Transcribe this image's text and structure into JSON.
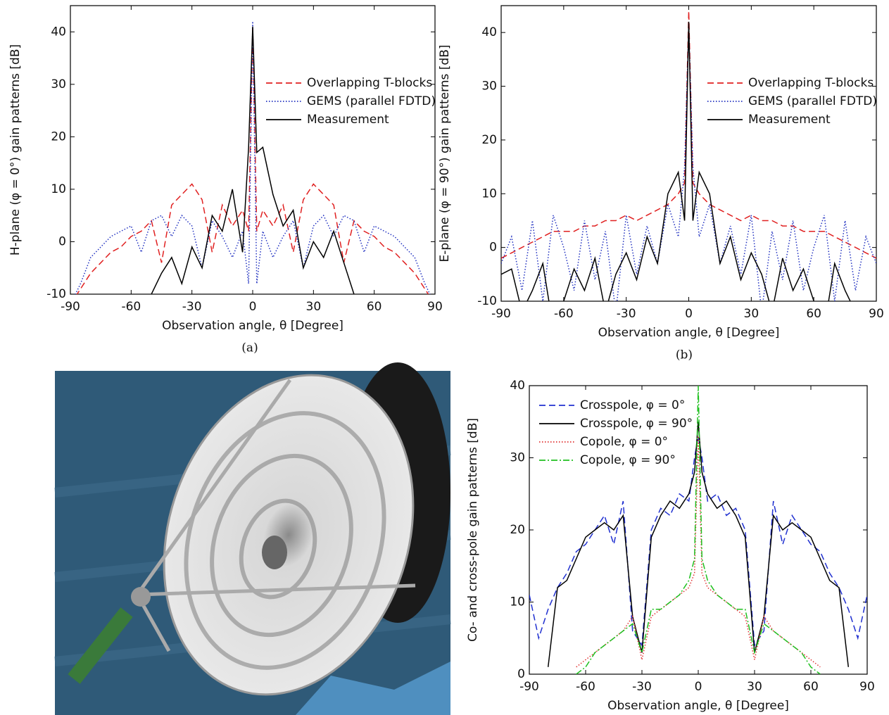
{
  "chart_data": [
    {
      "type": "line",
      "caption": "(a)",
      "xlabel": "Observation angle, θ [Degree]",
      "ylabel": "H-plane (φ = 0°) gain patterns [dB]",
      "x": [
        -90,
        -85,
        -80,
        -75,
        -70,
        -65,
        -60,
        -55,
        -50,
        -45,
        -40,
        -35,
        -30,
        -25,
        -20,
        -15,
        -10,
        -5,
        -2,
        0,
        2,
        5,
        10,
        15,
        20,
        25,
        30,
        35,
        40,
        45,
        50,
        55,
        60,
        65,
        70,
        75,
        80,
        85,
        90
      ],
      "xlim": [
        -90,
        90
      ],
      "xticks": [
        -90,
        -60,
        -30,
        0,
        30,
        60,
        90
      ],
      "ylim": [
        -10,
        45
      ],
      "yticks": [
        -10,
        0,
        10,
        20,
        30,
        40
      ],
      "grid": false,
      "legend": "upper right",
      "series": [
        {
          "name": "Overlapping T-blocks",
          "color": "#e02020",
          "style": "dashed",
          "values": [
            -12,
            -9,
            -6,
            -4,
            -2,
            -1,
            1,
            2,
            4,
            -4,
            7,
            9,
            11,
            8,
            -2,
            7,
            3,
            6,
            2,
            41,
            2,
            6,
            3,
            7,
            -2,
            8,
            11,
            9,
            7,
            -4,
            4,
            2,
            1,
            -1,
            -2,
            -4,
            -6,
            -9,
            -12
          ]
        },
        {
          "name": "GEMS (parallel FDTD)",
          "color": "#2030c0",
          "style": "dotted",
          "values": [
            -12,
            -8,
            -3,
            -1,
            1,
            2,
            3,
            -2,
            4,
            5,
            1,
            5,
            3,
            -5,
            4,
            1,
            -3,
            2,
            -8,
            42,
            -8,
            2,
            -3,
            1,
            4,
            -5,
            3,
            5,
            1,
            5,
            4,
            -2,
            3,
            2,
            1,
            -1,
            -3,
            -8,
            -12
          ]
        },
        {
          "name": "Measurement",
          "color": "#000000",
          "style": "solid",
          "values": [
            null,
            null,
            null,
            null,
            null,
            null,
            null,
            null,
            -10,
            -6,
            -3,
            -8,
            -1,
            -5,
            5,
            2,
            10,
            -2,
            18,
            41,
            17,
            18,
            9,
            3,
            6,
            -5,
            0,
            -3,
            2,
            -4,
            -10,
            null,
            null,
            null,
            null,
            null,
            null,
            null,
            null
          ]
        }
      ]
    },
    {
      "type": "line",
      "caption": "(b)",
      "xlabel": "Observation angle, θ [Degree]",
      "ylabel": "E-plane (φ = 90°) gain patterns [dB]",
      "x": [
        -90,
        -85,
        -80,
        -75,
        -70,
        -65,
        -60,
        -55,
        -50,
        -45,
        -40,
        -35,
        -30,
        -25,
        -20,
        -15,
        -10,
        -5,
        -2,
        0,
        2,
        5,
        10,
        15,
        20,
        25,
        30,
        35,
        40,
        45,
        50,
        55,
        60,
        65,
        70,
        75,
        80,
        85,
        90
      ],
      "xlim": [
        -90,
        90
      ],
      "xticks": [
        -90,
        -60,
        -30,
        0,
        30,
        60,
        90
      ],
      "ylim": [
        -10,
        45
      ],
      "yticks": [
        -10,
        0,
        10,
        20,
        30,
        40
      ],
      "grid": false,
      "legend": "upper right",
      "series": [
        {
          "name": "Overlapping T-blocks",
          "color": "#e02020",
          "style": "dashed",
          "values": [
            -2,
            -1,
            0,
            1,
            2,
            3,
            3,
            3,
            4,
            4,
            5,
            5,
            6,
            5,
            6,
            7,
            8,
            10,
            12,
            44,
            12,
            10,
            8,
            7,
            6,
            5,
            6,
            5,
            5,
            4,
            4,
            3,
            3,
            3,
            2,
            1,
            0,
            -1,
            -2
          ]
        },
        {
          "name": "GEMS (parallel FDTD)",
          "color": "#2030c0",
          "style": "dotted",
          "values": [
            -3,
            2,
            -8,
            5,
            -10,
            6,
            0,
            -8,
            5,
            -6,
            3,
            -12,
            6,
            -5,
            4,
            -3,
            8,
            2,
            15,
            41,
            15,
            2,
            8,
            -3,
            4,
            -5,
            6,
            -12,
            3,
            -6,
            5,
            -8,
            0,
            6,
            -10,
            5,
            -8,
            2,
            -3
          ]
        },
        {
          "name": "Measurement",
          "color": "#000000",
          "style": "solid",
          "values": [
            -5,
            -4,
            -12,
            -8,
            -3,
            -15,
            -10,
            -4,
            -8,
            -2,
            -12,
            -5,
            -1,
            -6,
            2,
            -3,
            10,
            14,
            5,
            42,
            5,
            14,
            10,
            -3,
            2,
            -6,
            -1,
            -5,
            -12,
            -2,
            -8,
            -4,
            -10,
            -15,
            -3,
            -8,
            -12,
            null,
            null
          ]
        }
      ]
    },
    {
      "type": "line",
      "xlabel": "Observation angle, θ [Degree]",
      "ylabel": "Co- and cross-pole gain patterns [dB]",
      "x": [
        -90,
        -85,
        -80,
        -75,
        -70,
        -65,
        -60,
        -55,
        -50,
        -45,
        -40,
        -35,
        -30,
        -25,
        -20,
        -15,
        -10,
        -5,
        -2,
        0,
        2,
        5,
        10,
        15,
        20,
        25,
        30,
        35,
        40,
        45,
        50,
        55,
        60,
        65,
        70,
        75,
        80,
        85,
        90
      ],
      "xlim": [
        -90,
        90
      ],
      "xticks": [
        -90,
        -60,
        -30,
        0,
        30,
        60,
        90
      ],
      "ylim": [
        0,
        40
      ],
      "yticks": [
        0,
        10,
        20,
        30,
        40
      ],
      "grid": false,
      "legend": "upper left",
      "series": [
        {
          "name": "Crosspole, φ = 0°",
          "color": "#2030d0",
          "style": "dashed",
          "values": [
            11,
            5,
            9,
            12,
            14,
            17,
            18,
            20,
            22,
            18,
            24,
            6,
            4,
            20,
            23,
            22,
            25,
            24,
            30,
            33,
            30,
            24,
            25,
            22,
            23,
            20,
            4,
            6,
            24,
            18,
            22,
            20,
            18,
            17,
            14,
            12,
            9,
            5,
            11
          ]
        },
        {
          "name": "Crosspole, φ = 90°",
          "color": "#000000",
          "style": "solid",
          "values": [
            null,
            null,
            1,
            12,
            13,
            16,
            19,
            20,
            21,
            20,
            22,
            8,
            3,
            19,
            22,
            24,
            23,
            25,
            28,
            35,
            28,
            25,
            23,
            24,
            22,
            19,
            3,
            8,
            22,
            20,
            21,
            20,
            19,
            16,
            13,
            12,
            1,
            null,
            null
          ]
        },
        {
          "name": "Copole, φ = 0°",
          "color": "#e03030",
          "style": "dotted",
          "values": [
            null,
            null,
            null,
            null,
            null,
            1,
            2,
            3,
            4,
            5,
            6,
            8,
            2,
            8,
            9,
            10,
            11,
            12,
            14,
            33,
            14,
            12,
            11,
            10,
            9,
            8,
            2,
            8,
            6,
            5,
            4,
            3,
            2,
            1,
            null,
            null,
            null,
            null,
            null
          ]
        },
        {
          "name": "Copole, φ = 90°",
          "color": "#20c020",
          "style": "dashdot",
          "values": [
            null,
            null,
            null,
            null,
            null,
            0,
            1,
            3,
            4,
            5,
            6,
            7,
            3,
            9,
            9,
            10,
            11,
            13,
            16,
            40,
            16,
            13,
            11,
            10,
            9,
            9,
            3,
            7,
            6,
            5,
            4,
            3,
            1,
            0,
            null,
            null,
            null,
            null,
            null
          ]
        }
      ]
    }
  ]
}
